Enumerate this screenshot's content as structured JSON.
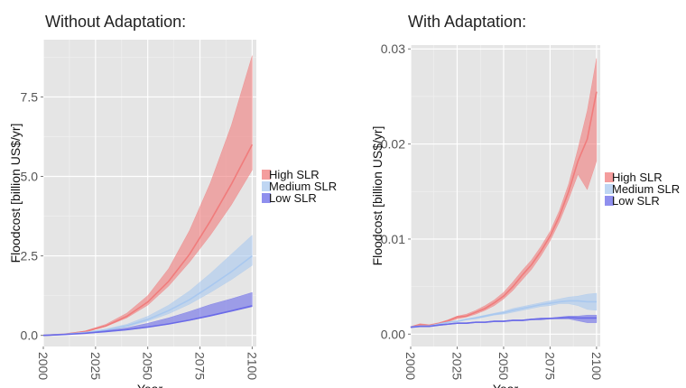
{
  "chart_data": [
    {
      "type": "area",
      "title": "Without Adaptation:",
      "xlabel": "Year",
      "ylabel": "Floodcost [billion US$/yr]",
      "xlim": [
        2000,
        2102
      ],
      "ylim": [
        -0.35,
        9.3
      ],
      "x_ticks": [
        2000,
        2025,
        2050,
        2075,
        2100
      ],
      "x_tick_labels": [
        "2000",
        "2025",
        "2050",
        "2075",
        "2100"
      ],
      "y_ticks": [
        0,
        2.5,
        5,
        7.5
      ],
      "y_tick_labels": [
        "0.0",
        "2.5",
        "5.0",
        "7.5"
      ],
      "grid": true,
      "legend_position": "right",
      "x": [
        2000,
        2010,
        2020,
        2030,
        2040,
        2050,
        2060,
        2070,
        2080,
        2090,
        2100
      ],
      "series": [
        {
          "name": "High SLR",
          "color": "#f07c7c",
          "lower": [
            0.0,
            0.03,
            0.1,
            0.28,
            0.55,
            0.95,
            1.55,
            2.3,
            3.15,
            4.1,
            5.2
          ],
          "upper": [
            0.0,
            0.04,
            0.14,
            0.35,
            0.7,
            1.25,
            2.1,
            3.3,
            4.8,
            6.6,
            8.8
          ],
          "line": [
            0.0,
            0.035,
            0.12,
            0.3,
            0.6,
            1.05,
            1.7,
            2.55,
            3.6,
            4.75,
            6.0
          ]
        },
        {
          "name": "Medium SLR",
          "color": "#a9c8ef",
          "lower": [
            0.0,
            0.03,
            0.08,
            0.15,
            0.27,
            0.45,
            0.68,
            0.98,
            1.35,
            1.75,
            2.2
          ],
          "upper": [
            0.0,
            0.035,
            0.1,
            0.2,
            0.35,
            0.6,
            0.95,
            1.4,
            1.95,
            2.55,
            3.15
          ],
          "line": [
            0.0,
            0.032,
            0.09,
            0.17,
            0.3,
            0.5,
            0.78,
            1.12,
            1.55,
            2.0,
            2.5
          ]
        },
        {
          "name": "Low SLR",
          "color": "#6a6ae8",
          "lower": [
            0.0,
            0.025,
            0.06,
            0.11,
            0.17,
            0.25,
            0.35,
            0.47,
            0.6,
            0.75,
            0.9
          ],
          "upper": [
            0.0,
            0.03,
            0.08,
            0.15,
            0.24,
            0.38,
            0.55,
            0.75,
            0.97,
            1.15,
            1.35
          ],
          "line": [
            0.0,
            0.027,
            0.065,
            0.12,
            0.18,
            0.26,
            0.36,
            0.48,
            0.62,
            0.77,
            0.93
          ]
        }
      ]
    },
    {
      "type": "area",
      "title": "With Adaptation:",
      "xlabel": "Year",
      "ylabel": "Floodcost [billion US$/yr]",
      "xlim": [
        2000,
        2102
      ],
      "ylim": [
        -0.0013,
        0.0304
      ],
      "x_ticks": [
        2000,
        2025,
        2050,
        2075,
        2100
      ],
      "x_tick_labels": [
        "2000",
        "2025",
        "2050",
        "2075",
        "2100"
      ],
      "y_ticks": [
        0,
        0.01,
        0.02,
        0.03
      ],
      "y_tick_labels": [
        "0.00",
        "0.01",
        "0.02",
        "0.03"
      ],
      "grid": true,
      "legend_position": "right",
      "x": [
        2000,
        2005,
        2010,
        2015,
        2020,
        2025,
        2030,
        2035,
        2040,
        2045,
        2050,
        2055,
        2060,
        2065,
        2070,
        2075,
        2080,
        2085,
        2090,
        2095,
        2100
      ],
      "series": [
        {
          "name": "High SLR",
          "color": "#f07c7c",
          "lower": [
            0.0007,
            0.0009,
            0.0008,
            0.001,
            0.0013,
            0.0016,
            0.0018,
            0.0021,
            0.0025,
            0.003,
            0.0037,
            0.0046,
            0.0057,
            0.0068,
            0.0082,
            0.0098,
            0.0118,
            0.0142,
            0.0168,
            0.0152,
            0.0182
          ],
          "upper": [
            0.0008,
            0.0011,
            0.001,
            0.0012,
            0.0015,
            0.0019,
            0.0021,
            0.0025,
            0.003,
            0.0036,
            0.0044,
            0.0055,
            0.0067,
            0.0078,
            0.0092,
            0.0108,
            0.013,
            0.0158,
            0.0195,
            0.0235,
            0.029
          ],
          "line": [
            0.00075,
            0.001,
            0.0009,
            0.0011,
            0.0014,
            0.0018,
            0.0019,
            0.0023,
            0.0027,
            0.0033,
            0.004,
            0.005,
            0.0062,
            0.0073,
            0.0087,
            0.0103,
            0.0124,
            0.015,
            0.0182,
            0.0205,
            0.0255
          ]
        },
        {
          "name": "Medium SLR",
          "color": "#a9c8ef",
          "lower": [
            0.0007,
            0.0008,
            0.0008,
            0.001,
            0.0012,
            0.0013,
            0.0015,
            0.0016,
            0.0018,
            0.002,
            0.0021,
            0.0023,
            0.0025,
            0.0027,
            0.0029,
            0.003,
            0.0032,
            0.0032,
            0.003,
            0.0026,
            0.0025
          ],
          "upper": [
            0.0008,
            0.0009,
            0.0009,
            0.0011,
            0.0013,
            0.0014,
            0.0016,
            0.0018,
            0.002,
            0.0022,
            0.0024,
            0.0027,
            0.0029,
            0.0031,
            0.0033,
            0.0035,
            0.0037,
            0.0039,
            0.004,
            0.0042,
            0.0043
          ],
          "line": [
            0.00075,
            0.00085,
            0.00085,
            0.00105,
            0.00125,
            0.00135,
            0.00155,
            0.0017,
            0.0019,
            0.0021,
            0.00225,
            0.0025,
            0.0027,
            0.0029,
            0.0031,
            0.00325,
            0.0034,
            0.0035,
            0.0035,
            0.0034,
            0.0034
          ]
        },
        {
          "name": "Low SLR",
          "color": "#6a6ae8",
          "lower": [
            0.0007,
            0.0008,
            0.0008,
            0.0009,
            0.001,
            0.0011,
            0.0011,
            0.0012,
            0.0012,
            0.0013,
            0.0013,
            0.0014,
            0.0014,
            0.0015,
            0.0015,
            0.0016,
            0.0016,
            0.0016,
            0.0014,
            0.0012,
            0.0012
          ],
          "upper": [
            0.00075,
            0.00085,
            0.00085,
            0.001,
            0.0011,
            0.0012,
            0.0012,
            0.0013,
            0.0013,
            0.0014,
            0.0014,
            0.0015,
            0.0015,
            0.0016,
            0.0017,
            0.0017,
            0.0018,
            0.0019,
            0.0019,
            0.002,
            0.002
          ],
          "line": [
            0.00072,
            0.00082,
            0.00082,
            0.00095,
            0.00105,
            0.00115,
            0.00115,
            0.00125,
            0.00125,
            0.00135,
            0.00135,
            0.00145,
            0.00145,
            0.00155,
            0.0016,
            0.00165,
            0.0017,
            0.00175,
            0.0017,
            0.0017,
            0.0017
          ]
        }
      ]
    }
  ]
}
